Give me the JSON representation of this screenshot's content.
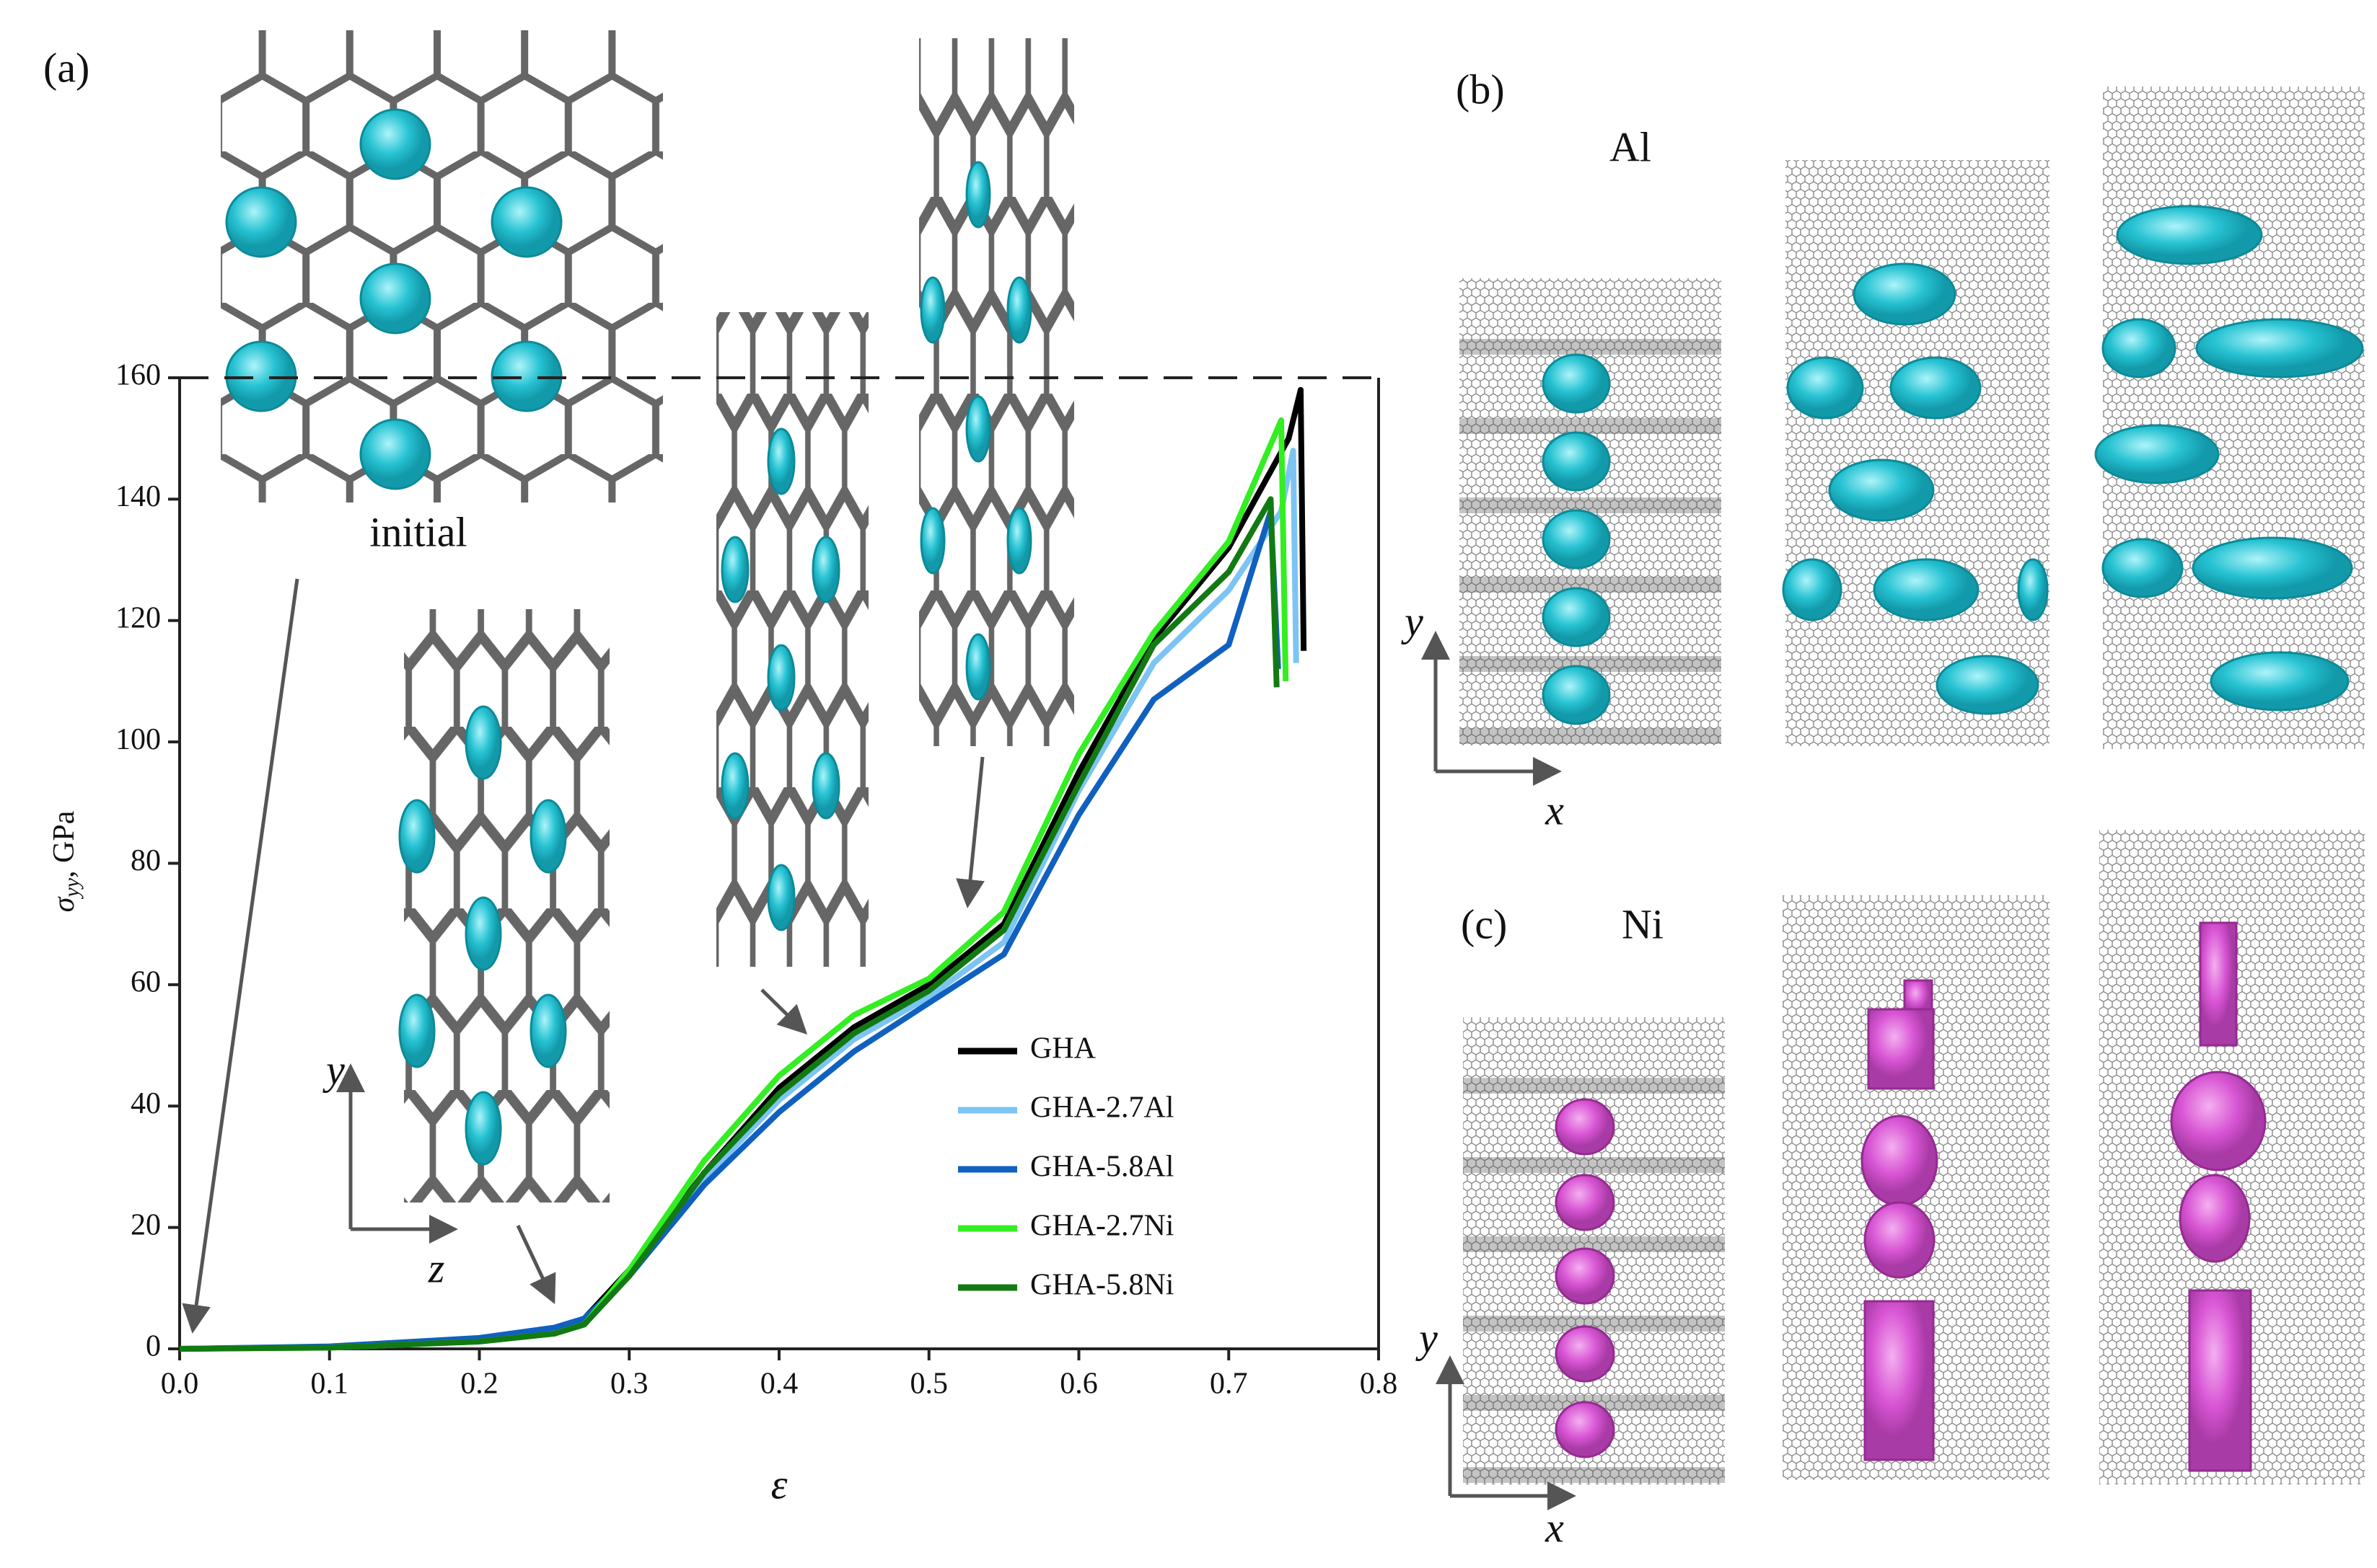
{
  "chart_data": {
    "type": "line",
    "panel_labels": [
      "(a)",
      "(b)",
      "(c)"
    ],
    "x_label": "ε",
    "y_label": {
      "symbol": "σ",
      "subscript": "yy",
      "unit": ", GPa"
    },
    "xlim": [
      0,
      0.8
    ],
    "ylim": [
      0,
      160
    ],
    "xticks": [
      {
        "value": 0,
        "label": "0.0"
      },
      0.1,
      0.2,
      0.3,
      0.4,
      0.5,
      0.6,
      0.7,
      0.8
    ],
    "yticks": [
      0,
      20,
      40,
      60,
      80,
      100,
      120,
      140,
      160
    ],
    "legend": "lower right",
    "series": [
      {
        "name": "GHA",
        "color": "#000000",
        "x": [
          0,
          0.1,
          0.2,
          0.25,
          0.27,
          0.3,
          0.35,
          0.4,
          0.45,
          0.5,
          0.55,
          0.6,
          0.65,
          0.7,
          0.74,
          0.748,
          0.75
        ],
        "values": [
          0,
          0.3,
          1.5,
          3,
          5,
          13,
          29,
          43,
          53,
          60,
          70,
          95,
          117,
          132,
          150,
          158,
          115
        ]
      },
      {
        "name": "GHA-2.7Al",
        "color": "#7cc4f4",
        "x": [
          0,
          0.1,
          0.2,
          0.25,
          0.27,
          0.3,
          0.35,
          0.4,
          0.45,
          0.5,
          0.55,
          0.6,
          0.65,
          0.7,
          0.735,
          0.743,
          0.745
        ],
        "values": [
          0,
          0.3,
          1.5,
          3,
          4.5,
          12,
          28,
          41,
          51,
          58,
          67,
          92,
          113,
          125,
          138,
          148,
          113
        ]
      },
      {
        "name": "GHA-5.8Al",
        "color": "#1060c0",
        "x": [
          0,
          0.1,
          0.2,
          0.25,
          0.27,
          0.3,
          0.35,
          0.4,
          0.45,
          0.5,
          0.55,
          0.6,
          0.65,
          0.7,
          0.728,
          0.733
        ],
        "values": [
          0,
          0.4,
          1.8,
          3.5,
          5,
          12,
          27,
          39,
          49,
          57,
          65,
          88,
          107,
          116,
          138,
          112
        ]
      },
      {
        "name": "GHA-2.7Ni",
        "color": "#33ee22",
        "x": [
          0,
          0.1,
          0.2,
          0.25,
          0.27,
          0.3,
          0.35,
          0.4,
          0.45,
          0.5,
          0.55,
          0.6,
          0.65,
          0.7,
          0.735,
          0.738
        ],
        "values": [
          0,
          0.2,
          1.2,
          2.5,
          4,
          13,
          31,
          45,
          55,
          61,
          72,
          98,
          118,
          133,
          153,
          110
        ]
      },
      {
        "name": "GHA-5.8Ni",
        "color": "#137a13",
        "x": [
          0,
          0.1,
          0.2,
          0.25,
          0.27,
          0.3,
          0.35,
          0.4,
          0.45,
          0.5,
          0.55,
          0.6,
          0.65,
          0.7,
          0.728,
          0.732
        ],
        "values": [
          0,
          0.2,
          1.2,
          2.5,
          4,
          12,
          29,
          42,
          52,
          59,
          69,
          93,
          116,
          128,
          140,
          109
        ]
      }
    ],
    "inset_labels": {
      "initial": "initial",
      "axis_y": "y",
      "axis_z": "z"
    },
    "panel_b": {
      "element": "Al",
      "axis_y": "y",
      "axis_x": "x"
    },
    "panel_c": {
      "element": "Ni",
      "axis_y": "y",
      "axis_x": "x"
    }
  }
}
